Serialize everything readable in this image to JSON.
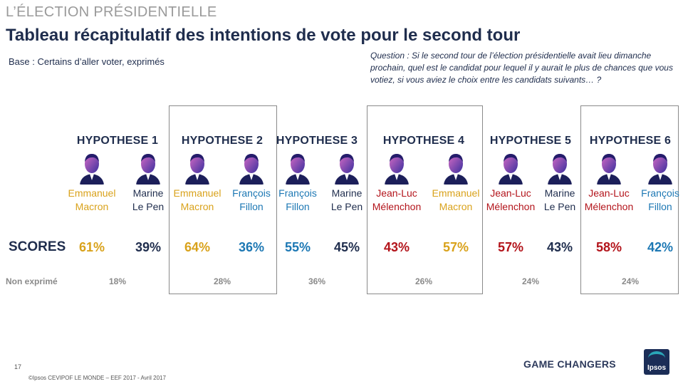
{
  "kicker": "L’ÉLECTION PRÉSIDENTIELLE",
  "title": "Tableau récapitulatif des intentions de vote pour le second tour",
  "base": "Base : Certains d’aller voter, exprimés",
  "question": "Question : Si le second tour de l’élection présidentielle avait lieu dimanche prochain, quel est le candidat pour lequel il y aurait le plus de chances que vous votiez, si vous aviez le choix entre les candidats suivants… ?",
  "colors": {
    "macron": "#d9a21b",
    "lepen": "#1f2d4d",
    "fillon": "#1d78b4",
    "melenchon": "#b3141b",
    "navy": "#1f2d4d",
    "grey": "#8a8a8a"
  },
  "labels": {
    "scores": "SCORES",
    "non_exprime": "Non exprimé"
  },
  "hypotheses": [
    {
      "label": "HYPOTHESE 1",
      "non_exprime": "18%",
      "candidates": [
        {
          "first": "Emmanuel",
          "last": "Macron",
          "score": "61%",
          "party": "macron",
          "photo_icon": "macron-portrait-icon"
        },
        {
          "first": "Marine",
          "last": "Le Pen",
          "score": "39%",
          "party": "lepen",
          "photo_icon": "lepen-portrait-icon"
        }
      ]
    },
    {
      "label": "HYPOTHESE 2",
      "non_exprime": "28%",
      "candidates": [
        {
          "first": "Emmanuel",
          "last": "Macron",
          "score": "64%",
          "party": "macron",
          "photo_icon": "macron-portrait-icon"
        },
        {
          "first": "François",
          "last": "Fillon",
          "score": "36%",
          "party": "fillon",
          "photo_icon": "fillon-portrait-icon"
        }
      ]
    },
    {
      "label": "HYPOTHESE 3",
      "non_exprime": "36%",
      "candidates": [
        {
          "first": "François",
          "last": "Fillon",
          "score": "55%",
          "party": "fillon",
          "photo_icon": "fillon-portrait-icon"
        },
        {
          "first": "Marine",
          "last": "Le Pen",
          "score": "45%",
          "party": "lepen",
          "photo_icon": "lepen-portrait-icon"
        }
      ]
    },
    {
      "label": "HYPOTHESE 4",
      "non_exprime": "26%",
      "candidates": [
        {
          "first": "Jean-Luc",
          "last": "Mélenchon",
          "score": "43%",
          "party": "melenchon",
          "photo_icon": "melenchon-portrait-icon"
        },
        {
          "first": "Emmanuel",
          "last": "Macron",
          "score": "57%",
          "party": "macron",
          "photo_icon": "macron-portrait-icon"
        }
      ]
    },
    {
      "label": "HYPOTHESE 5",
      "non_exprime": "24%",
      "candidates": [
        {
          "first": "Jean-Luc",
          "last": "Mélenchon",
          "score": "57%",
          "party": "melenchon",
          "photo_icon": "melenchon-portrait-icon"
        },
        {
          "first": "Marine",
          "last": "Le Pen",
          "score": "43%",
          "party": "lepen",
          "photo_icon": "lepen-portrait-icon"
        }
      ]
    },
    {
      "label": "HYPOTHESE 6",
      "non_exprime": "24%",
      "candidates": [
        {
          "first": "Jean-Luc",
          "last": "Mélenchon",
          "score": "58%",
          "party": "melenchon",
          "photo_icon": "melenchon-portrait-icon"
        },
        {
          "first": "François",
          "last": "Fillon",
          "score": "42%",
          "party": "fillon",
          "photo_icon": "fillon-portrait-icon"
        }
      ]
    }
  ],
  "footer": {
    "page": "17",
    "copyright": "©Ipsos  CEVIPOF LE MONDE – EEF 2017 -  Avril 2017",
    "tagline": "GAME CHANGERS",
    "logo": "Ipsos"
  }
}
